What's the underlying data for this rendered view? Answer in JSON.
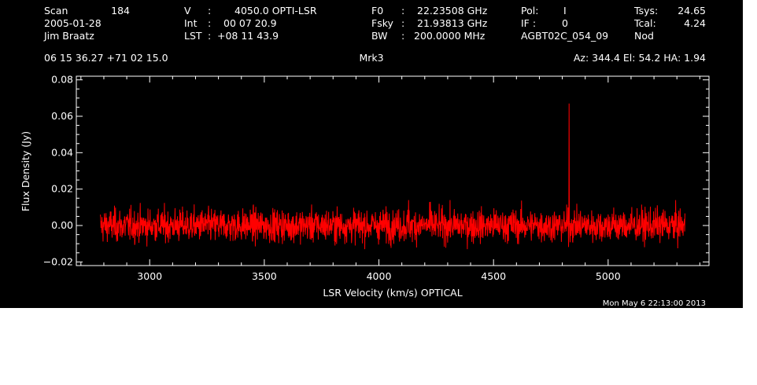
{
  "header": {
    "scan_label": "Scan",
    "scan_value": "184",
    "date": "2005-01-28",
    "observer": "Jim Braatz",
    "velocity_label": "V",
    "velocity_value": "4050.0 OPTI-LSR",
    "int_label": "Int",
    "int_value": "00 07 20.9",
    "lst_label": "LST",
    "lst_value": "+08 11 43.9",
    "f0_label": "F0",
    "f0_value": "22.23508 GHz",
    "fsky_label": "Fsky",
    "fsky_value": "21.93813 GHz",
    "bw_label": "BW",
    "bw_value": "200.0000 MHz",
    "pol_label": "Pol:",
    "pol_value": "I",
    "if_label": "IF :",
    "if_value": "0",
    "project": "AGBT02C_054_09",
    "tsys_label": "Tsys:",
    "tsys_value": "24.65",
    "tcal_label": "Tcal:",
    "tcal_value": "4.24",
    "mode": "Nod",
    "coords": "06 15 36.27  +71 02 15.0",
    "source": "Mrk3",
    "az_el_ha": "Az: 344.4  El:  54.2  HA:  1.94"
  },
  "footer": {
    "timestamp": "Mon May  6 22:13:00 2013"
  },
  "chart_data": {
    "type": "line",
    "title": "Mrk3",
    "xlabel": "LSR Velocity (km/s) OPTICAL",
    "ylabel": "Flux Density (Jy)",
    "xlim": [
      2680,
      5440
    ],
    "ylim": [
      -0.022,
      0.082
    ],
    "x_ticks": [
      3000,
      3500,
      4000,
      4500,
      5000
    ],
    "x_tick_labels": [
      "3000",
      "3500",
      "4000",
      "4500",
      "5000"
    ],
    "y_ticks": [
      -0.02,
      0.0,
      0.02,
      0.04,
      0.06,
      0.08
    ],
    "y_tick_labels": [
      "−0.02",
      "0.00",
      "0.02",
      "0.04",
      "0.06",
      "0.08"
    ],
    "grid": false,
    "line_color": "#ff0000",
    "series": [
      {
        "x_range": [
          2785,
          5335
        ],
        "baseline": 0.0,
        "noise_rms": 0.0045,
        "features": [
          {
            "x": 4130,
            "y": 0.014
          },
          {
            "x": 4225,
            "y": 0.013
          },
          {
            "x": 4830,
            "y": 0.067
          }
        ]
      }
    ]
  }
}
